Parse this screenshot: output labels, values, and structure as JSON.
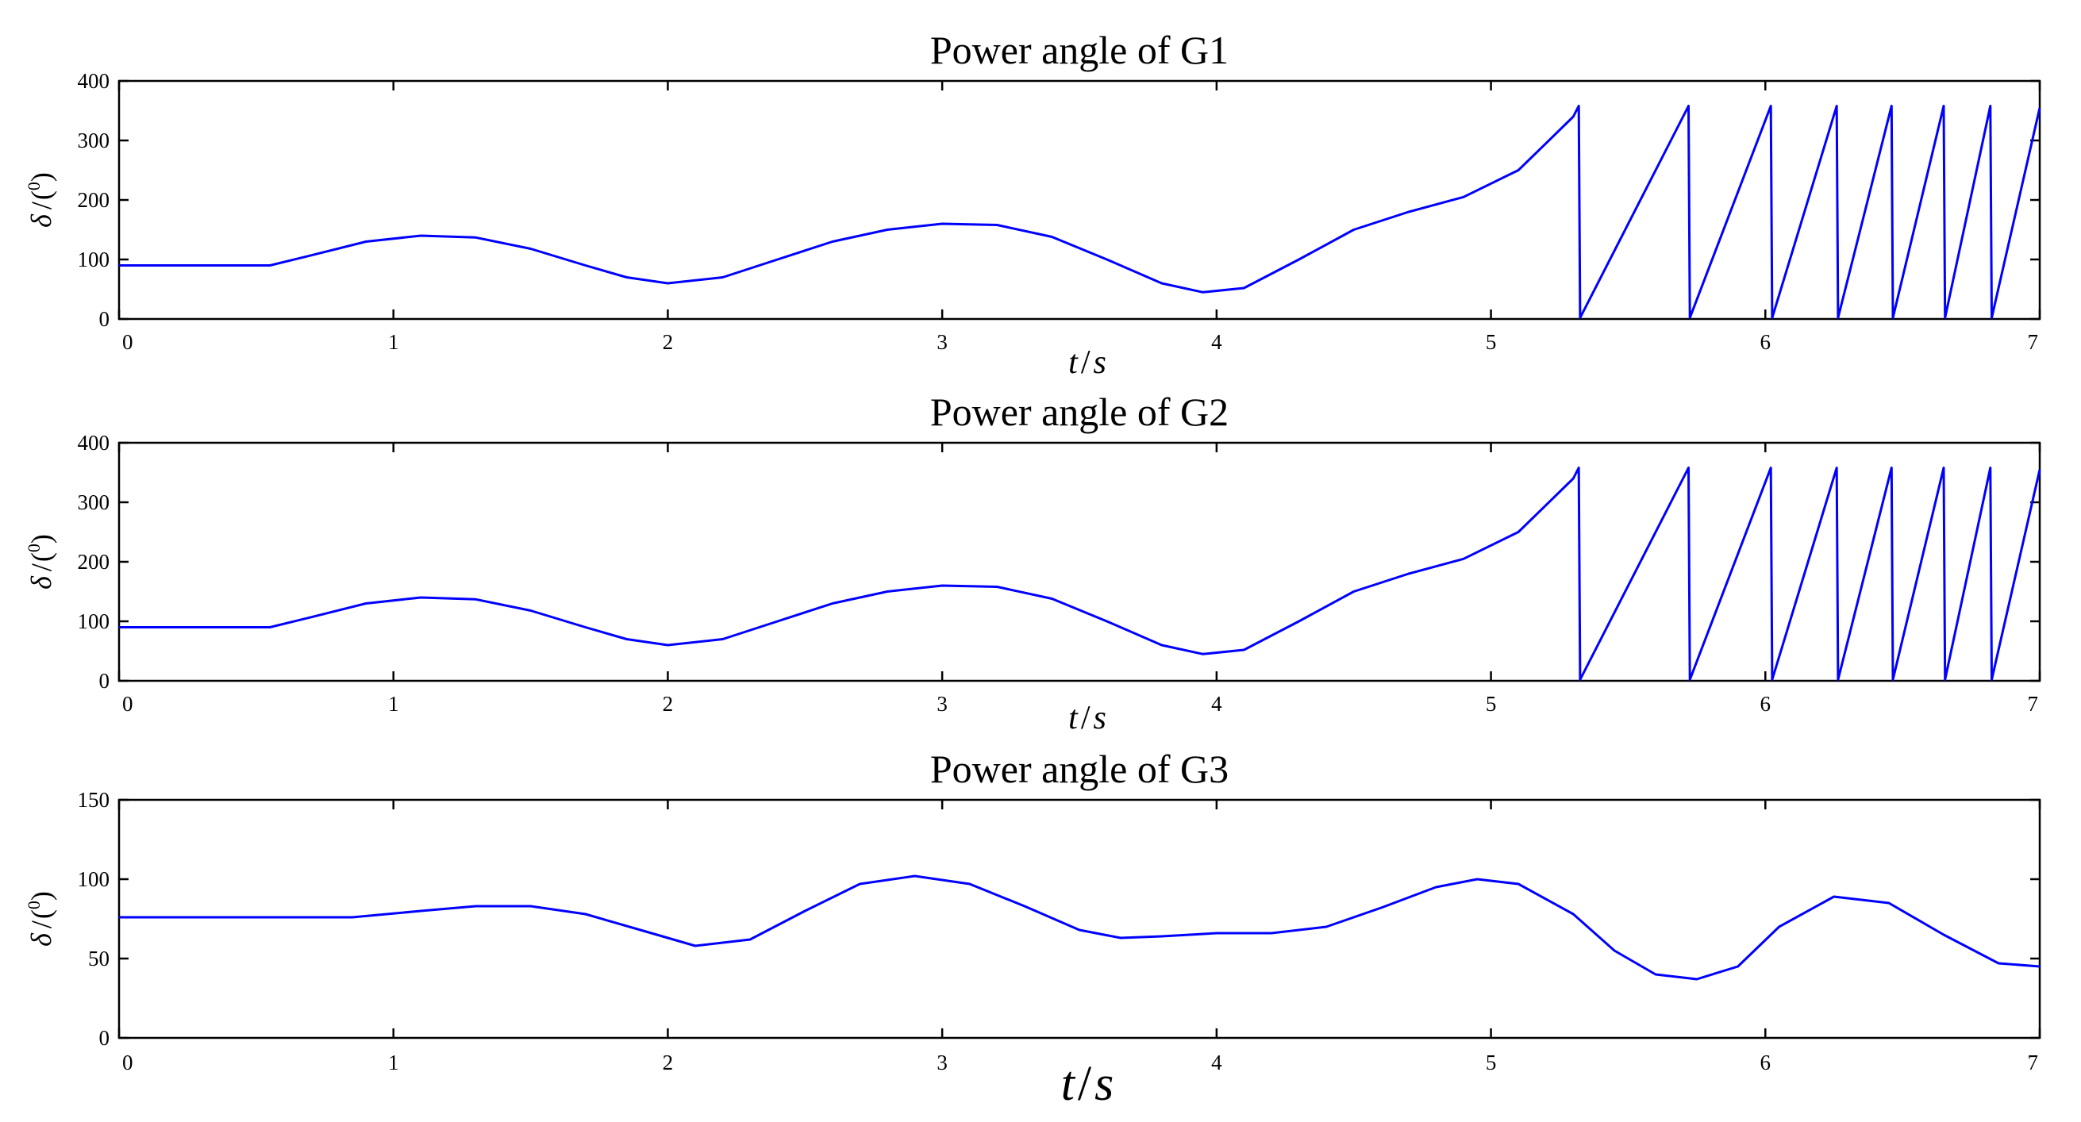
{
  "chart_data": [
    {
      "type": "line",
      "title": "Power angle of G1",
      "xlabel": "t / s",
      "ylabel": "δ / (0)",
      "xlim": [
        0,
        7
      ],
      "ylim": [
        0,
        400
      ],
      "xticks": [
        "0",
        "1",
        "2",
        "3",
        "4",
        "5",
        "6",
        "7"
      ],
      "yticks": [
        "0",
        "100",
        "200",
        "300",
        "400"
      ],
      "grid": false,
      "color": "#0000ff",
      "series": [
        {
          "x": [
            0,
            0.55,
            0.7,
            0.9,
            1.1,
            1.3,
            1.5,
            1.7,
            1.85,
            2.0,
            2.2,
            2.4,
            2.6,
            2.8,
            3.0,
            3.2,
            3.4,
            3.6,
            3.8,
            3.95,
            4.1,
            4.3,
            4.5,
            4.7,
            4.9,
            5.1,
            5.2,
            5.3,
            5.32,
            5.325,
            5.72,
            5.725,
            6.02,
            6.025,
            6.26,
            6.265,
            6.46,
            6.465,
            6.65,
            6.655,
            6.82,
            6.825,
            7.0
          ],
          "values": [
            90,
            90,
            107,
            130,
            140,
            137,
            118,
            90,
            70,
            60,
            70,
            100,
            130,
            150,
            160,
            158,
            138,
            100,
            60,
            45,
            52,
            100,
            150,
            180,
            205,
            250,
            295,
            340,
            358,
            2,
            358,
            2,
            358,
            2,
            358,
            2,
            358,
            2,
            358,
            2,
            358,
            2,
            355
          ]
        }
      ]
    },
    {
      "type": "line",
      "title": "Power angle of G2",
      "xlabel": "t / s",
      "ylabel": "δ / (0)",
      "xlim": [
        0,
        7
      ],
      "ylim": [
        0,
        400
      ],
      "xticks": [
        "0",
        "1",
        "2",
        "3",
        "4",
        "5",
        "6",
        "7"
      ],
      "yticks": [
        "0",
        "100",
        "200",
        "300",
        "400"
      ],
      "grid": false,
      "color": "#0000ff",
      "series": [
        {
          "x": [
            0,
            0.55,
            0.7,
            0.9,
            1.1,
            1.3,
            1.5,
            1.7,
            1.85,
            2.0,
            2.2,
            2.4,
            2.6,
            2.8,
            3.0,
            3.2,
            3.4,
            3.6,
            3.8,
            3.95,
            4.1,
            4.3,
            4.5,
            4.7,
            4.9,
            5.1,
            5.2,
            5.3,
            5.32,
            5.325,
            5.72,
            5.725,
            6.02,
            6.025,
            6.26,
            6.265,
            6.46,
            6.465,
            6.65,
            6.655,
            6.82,
            6.825,
            7.0
          ],
          "values": [
            90,
            90,
            107,
            130,
            140,
            137,
            118,
            90,
            70,
            60,
            70,
            100,
            130,
            150,
            160,
            158,
            138,
            100,
            60,
            45,
            52,
            100,
            150,
            180,
            205,
            250,
            295,
            340,
            358,
            2,
            358,
            2,
            358,
            2,
            358,
            2,
            358,
            2,
            358,
            2,
            358,
            2,
            355
          ]
        }
      ]
    },
    {
      "type": "line",
      "title": "Power angle of G3",
      "xlabel": "t / s",
      "ylabel": "δ / (0)",
      "xlim": [
        0,
        7
      ],
      "ylim": [
        0,
        150
      ],
      "xticks": [
        "0",
        "1",
        "2",
        "3",
        "4",
        "5",
        "6",
        "7"
      ],
      "yticks": [
        "0",
        "50",
        "100",
        "150"
      ],
      "grid": false,
      "color": "#0000ff",
      "series": [
        {
          "x": [
            0,
            0.85,
            1.1,
            1.3,
            1.5,
            1.7,
            1.9,
            2.1,
            2.3,
            2.5,
            2.7,
            2.9,
            3.1,
            3.3,
            3.5,
            3.65,
            3.8,
            4.0,
            4.2,
            4.4,
            4.6,
            4.8,
            4.95,
            5.1,
            5.3,
            5.45,
            5.6,
            5.75,
            5.9,
            6.05,
            6.25,
            6.45,
            6.65,
            6.85,
            7.0
          ],
          "values": [
            76,
            76,
            80,
            83,
            83,
            78,
            68,
            58,
            62,
            80,
            97,
            102,
            97,
            83,
            68,
            63,
            64,
            66,
            66,
            70,
            82,
            95,
            100,
            97,
            78,
            55,
            40,
            37,
            45,
            70,
            89,
            85,
            65,
            47,
            45
          ]
        }
      ]
    }
  ]
}
